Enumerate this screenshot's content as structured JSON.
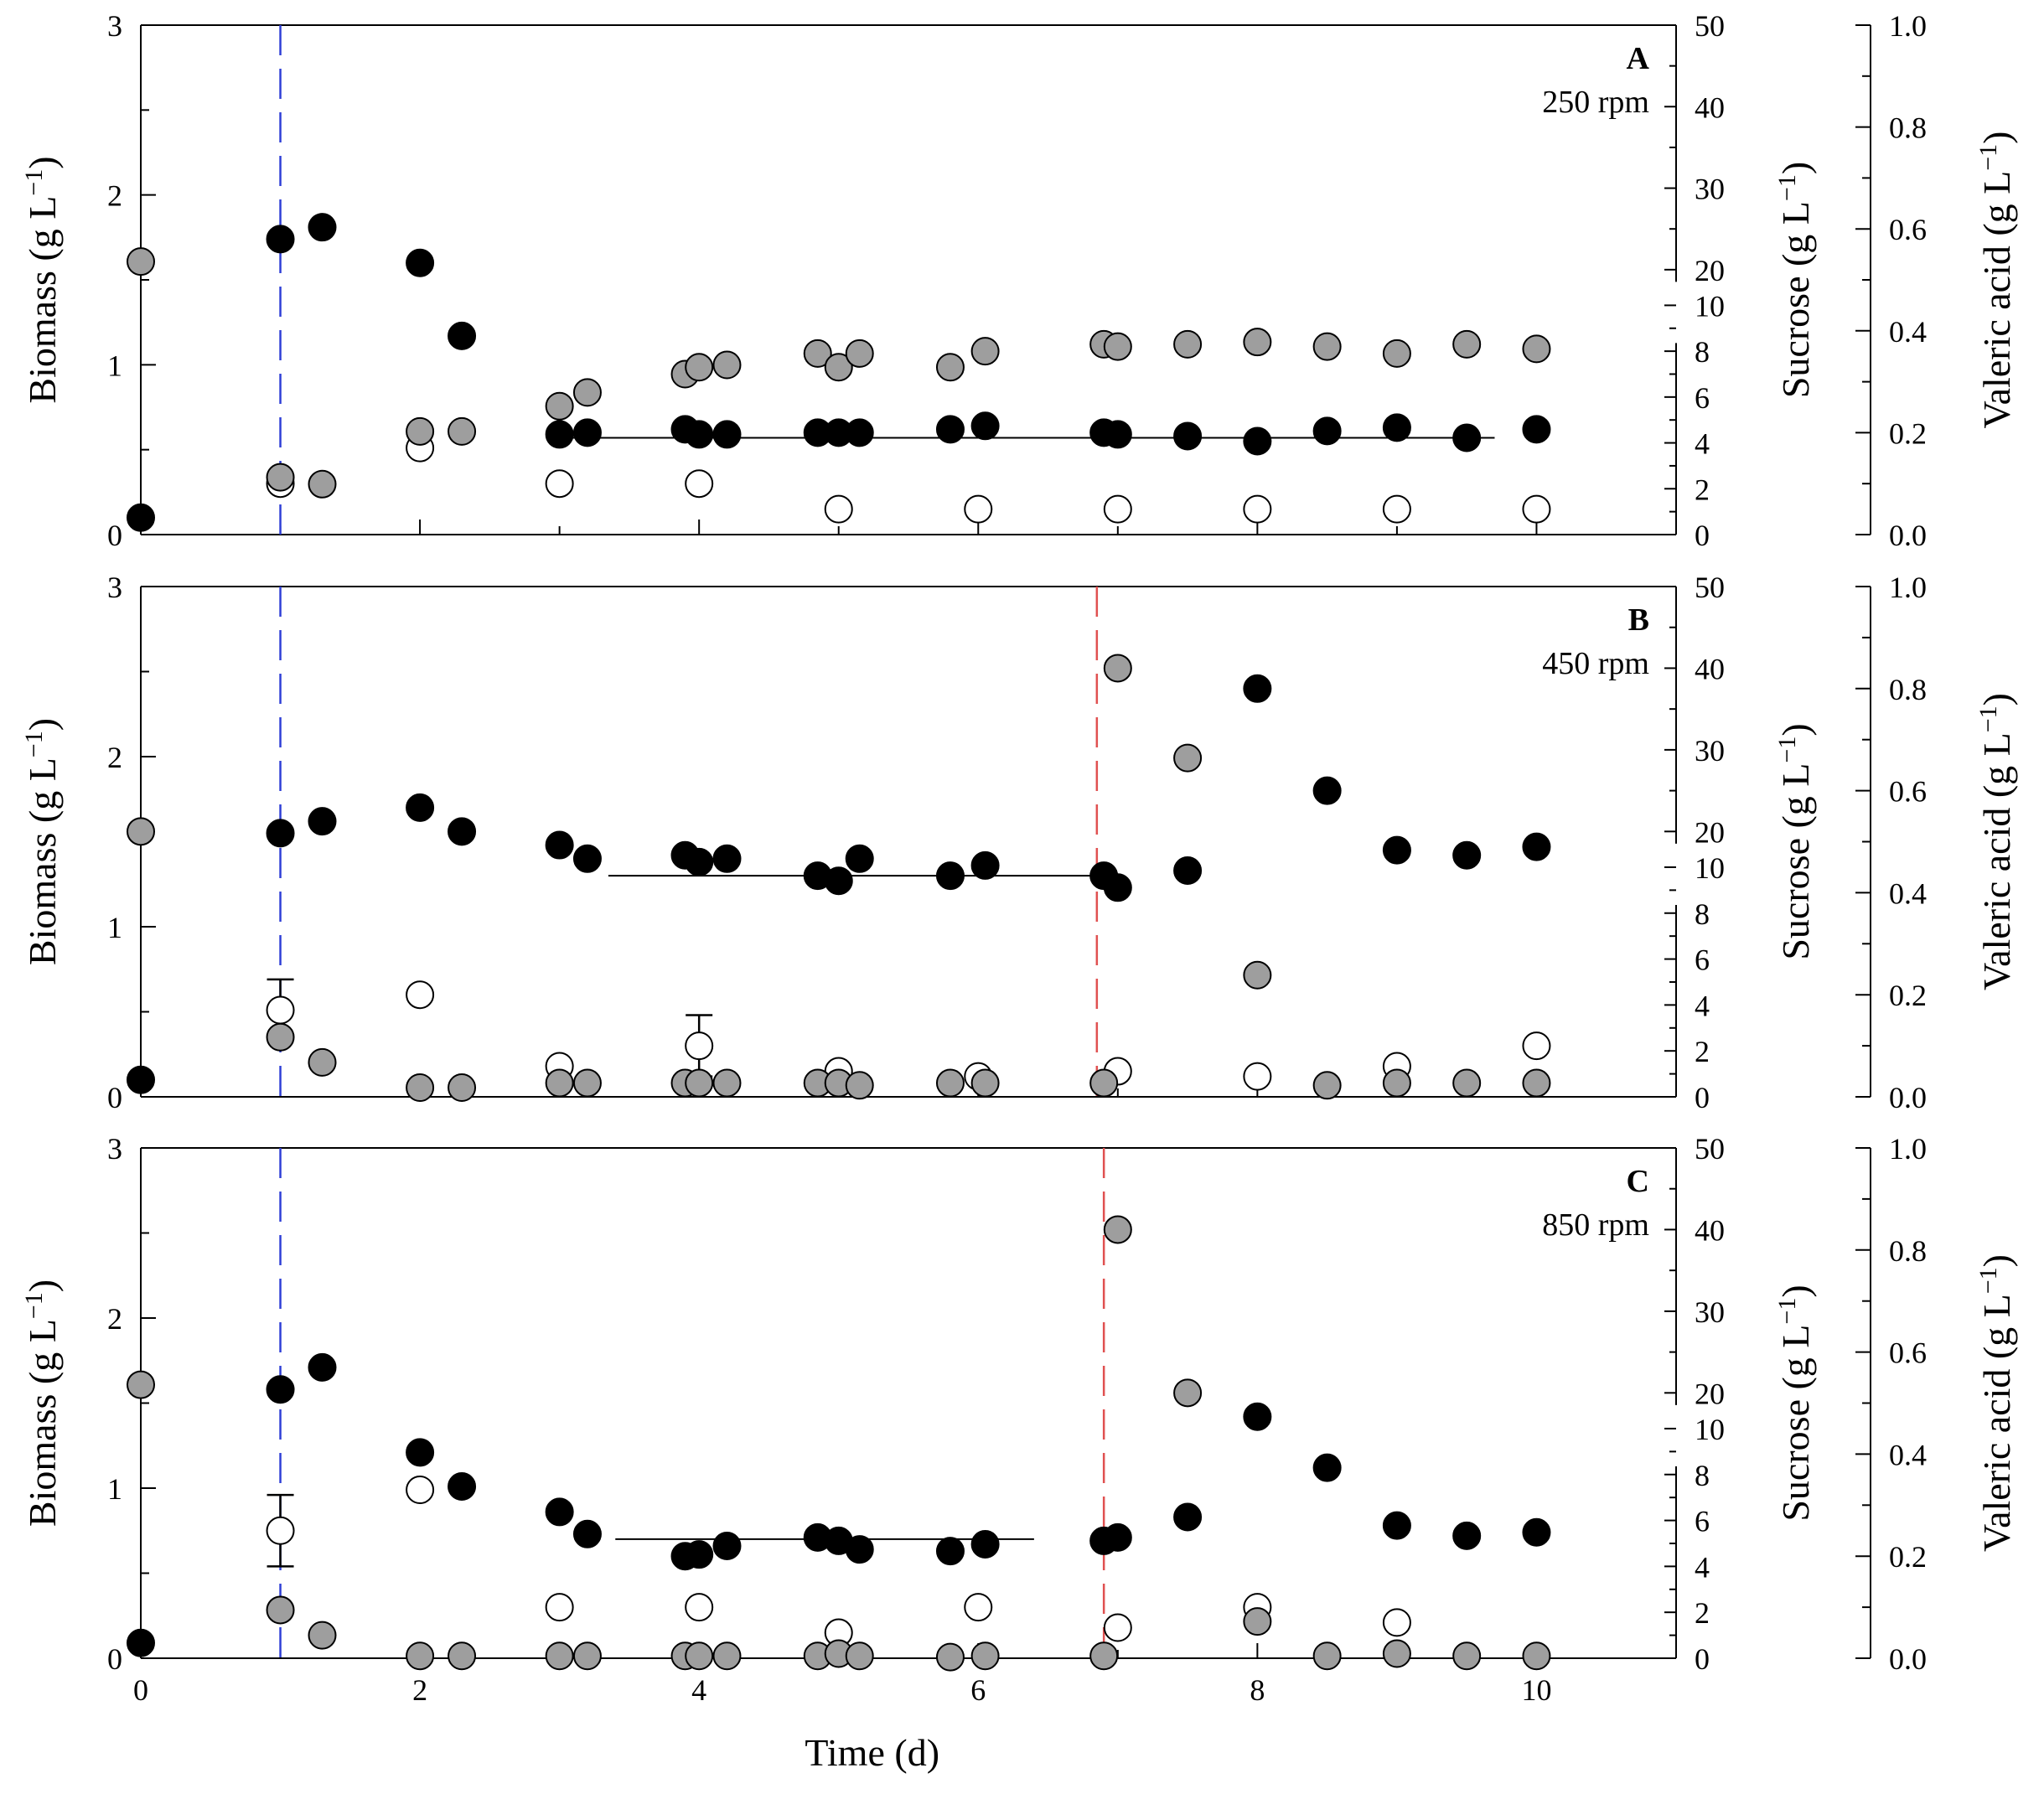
{
  "chart_data": {
    "type": "scatter",
    "xlabel": "Time (d)",
    "xlim": [
      0,
      11
    ],
    "x_ticks": [
      "0",
      "2",
      "4",
      "6",
      "8",
      "10"
    ],
    "axes_titles": {
      "biomass": "Biomass (g L",
      "sucrose": "Sucrose (g L",
      "valeric": "Valeric acid (g L",
      "unit_exp": "−1",
      "unit_close": ")"
    },
    "biomass_ticks": [
      "0",
      "1",
      "2",
      "3"
    ],
    "sucrose_low_ticks": [
      "0",
      "2",
      "4",
      "6",
      "8",
      "10"
    ],
    "sucrose_high_ticks": [
      "20",
      "30",
      "40",
      "50"
    ],
    "valeric_ticks": [
      "0.0",
      "0.2",
      "0.4",
      "0.6",
      "0.8",
      "1.0"
    ],
    "series_legend": {
      "biomass": "black filled circles",
      "sucrose": "grey filled circles",
      "valeric": "open circles"
    },
    "colors": {
      "biomass": "#000000",
      "sucrose": "#9e9e9e",
      "valeric": "#ffffff",
      "feed_line": "#2f3fd6",
      "pulse_line": "#e05050"
    },
    "panels": [
      {
        "label": "A",
        "condition": "250 rpm",
        "feed_start": 1.0,
        "pulse": null,
        "steady_state": {
          "x0": 3.0,
          "x1": 9.7,
          "biomass": 0.57
        },
        "biomass": [
          [
            0,
            0.1
          ],
          [
            1,
            1.74
          ],
          [
            1.3,
            1.81
          ],
          [
            2,
            1.6
          ],
          [
            2.3,
            1.17
          ],
          [
            3,
            0.59
          ],
          [
            3.2,
            0.6
          ],
          [
            3.9,
            0.62
          ],
          [
            4,
            0.59
          ],
          [
            4.2,
            0.59
          ],
          [
            4.85,
            0.6
          ],
          [
            5,
            0.6
          ],
          [
            5.15,
            0.6
          ],
          [
            5.8,
            0.62
          ],
          [
            6.05,
            0.64
          ],
          [
            6.9,
            0.6
          ],
          [
            7,
            0.59
          ],
          [
            7.5,
            0.58
          ],
          [
            8,
            0.55
          ],
          [
            8.5,
            0.61
          ],
          [
            9,
            0.63
          ],
          [
            9.5,
            0.57
          ],
          [
            10,
            0.62
          ]
        ],
        "sucrose": [
          [
            0,
            21.0
          ],
          [
            1,
            2.5
          ],
          [
            1.3,
            2.2
          ],
          [
            2,
            4.5
          ],
          [
            2.3,
            4.5
          ],
          [
            3,
            5.6
          ],
          [
            3.2,
            6.2
          ],
          [
            3.9,
            7.0
          ],
          [
            4,
            7.3
          ],
          [
            4.2,
            7.4
          ],
          [
            4.85,
            7.9
          ],
          [
            5,
            7.3
          ],
          [
            5.15,
            7.9
          ],
          [
            5.8,
            7.3
          ],
          [
            6.05,
            8.0
          ],
          [
            6.9,
            8.3
          ],
          [
            7,
            8.2
          ],
          [
            7.5,
            8.3
          ],
          [
            8,
            8.4
          ],
          [
            8.5,
            8.2
          ],
          [
            9,
            7.9
          ],
          [
            9.5,
            8.3
          ],
          [
            10,
            8.1
          ]
        ],
        "valeric": [
          [
            1,
            0.1
          ],
          [
            2,
            0.17
          ],
          [
            3,
            0.1
          ],
          [
            4,
            0.1
          ],
          [
            5,
            0.05
          ],
          [
            6,
            0.05
          ],
          [
            7,
            0.05
          ],
          [
            8,
            0.05
          ],
          [
            9,
            0.05
          ],
          [
            10,
            0.05
          ]
        ],
        "errorbars": []
      },
      {
        "label": "B",
        "condition": "450 rpm",
        "feed_start": 1.0,
        "pulse": 6.85,
        "steady_state": {
          "x0": 3.35,
          "x1": 6.9,
          "biomass": 1.3
        },
        "biomass": [
          [
            0,
            0.1
          ],
          [
            1,
            1.55
          ],
          [
            1.3,
            1.62
          ],
          [
            2,
            1.7
          ],
          [
            2.3,
            1.56
          ],
          [
            3,
            1.48
          ],
          [
            3.2,
            1.4
          ],
          [
            3.9,
            1.42
          ],
          [
            4,
            1.38
          ],
          [
            4.2,
            1.4
          ],
          [
            4.85,
            1.3
          ],
          [
            5,
            1.27
          ],
          [
            5.15,
            1.4
          ],
          [
            5.8,
            1.3
          ],
          [
            6.05,
            1.36
          ],
          [
            6.9,
            1.3
          ],
          [
            7,
            1.23
          ],
          [
            7.5,
            1.33
          ],
          [
            8,
            2.4
          ],
          [
            8.5,
            1.8
          ],
          [
            9,
            1.45
          ],
          [
            9.5,
            1.42
          ],
          [
            10,
            1.47
          ]
        ],
        "sucrose": [
          [
            0,
            20.0
          ],
          [
            1,
            2.6
          ],
          [
            1.3,
            1.5
          ],
          [
            2,
            0.4
          ],
          [
            2.3,
            0.4
          ],
          [
            3,
            0.6
          ],
          [
            3.2,
            0.6
          ],
          [
            3.9,
            0.6
          ],
          [
            4,
            0.6
          ],
          [
            4.2,
            0.6
          ],
          [
            4.85,
            0.6
          ],
          [
            5,
            0.6
          ],
          [
            5.15,
            0.5
          ],
          [
            5.8,
            0.6
          ],
          [
            6.05,
            0.6
          ],
          [
            6.9,
            0.6
          ],
          [
            7,
            40.0
          ],
          [
            7.5,
            29.0
          ],
          [
            8,
            5.3
          ],
          [
            8.5,
            0.5
          ],
          [
            9,
            0.6
          ],
          [
            9.5,
            0.6
          ],
          [
            10,
            0.6
          ]
        ],
        "valeric": [
          [
            1,
            0.17
          ],
          [
            2,
            0.2
          ],
          [
            3,
            0.06
          ],
          [
            4,
            0.1
          ],
          [
            5,
            0.05
          ],
          [
            6,
            0.04
          ],
          [
            7,
            0.05
          ],
          [
            8,
            0.04
          ],
          [
            9,
            0.06
          ],
          [
            10,
            0.1
          ]
        ],
        "errorbars": [
          {
            "series": "valeric",
            "x": 1,
            "lo": 0.12,
            "hi": 0.23
          },
          {
            "series": "valeric",
            "x": 4,
            "lo": 0.04,
            "hi": 0.16
          }
        ]
      },
      {
        "label": "C",
        "condition": "850 rpm",
        "feed_start": 1.0,
        "pulse": 6.9,
        "steady_state": {
          "x0": 3.4,
          "x1": 6.4,
          "biomass": 0.7
        },
        "biomass": [
          [
            0,
            0.09
          ],
          [
            1,
            1.58
          ],
          [
            1.3,
            1.71
          ],
          [
            2,
            1.21
          ],
          [
            2.3,
            1.01
          ],
          [
            3,
            0.86
          ],
          [
            3.2,
            0.73
          ],
          [
            3.9,
            0.6
          ],
          [
            4,
            0.61
          ],
          [
            4.2,
            0.66
          ],
          [
            4.85,
            0.71
          ],
          [
            5,
            0.69
          ],
          [
            5.15,
            0.64
          ],
          [
            5.8,
            0.63
          ],
          [
            6.05,
            0.67
          ],
          [
            6.9,
            0.69
          ],
          [
            7,
            0.71
          ],
          [
            7.5,
            0.83
          ],
          [
            8,
            1.42
          ],
          [
            8.5,
            1.12
          ],
          [
            9,
            0.78
          ],
          [
            9.5,
            0.72
          ],
          [
            10,
            0.74
          ]
        ],
        "sucrose": [
          [
            0,
            21.0
          ],
          [
            1,
            2.1
          ],
          [
            1.3,
            1.0
          ],
          [
            2,
            0.1
          ],
          [
            2.3,
            0.1
          ],
          [
            3,
            0.1
          ],
          [
            3.2,
            0.1
          ],
          [
            3.9,
            0.1
          ],
          [
            4,
            0.1
          ],
          [
            4.2,
            0.1
          ],
          [
            4.85,
            0.1
          ],
          [
            5,
            0.2
          ],
          [
            5.15,
            0.1
          ],
          [
            5.8,
            0.05
          ],
          [
            6.05,
            0.1
          ],
          [
            6.9,
            0.1
          ],
          [
            7,
            40.0
          ],
          [
            7.5,
            20.0
          ],
          [
            8,
            1.6
          ],
          [
            8.5,
            0.1
          ],
          [
            9,
            0.2
          ],
          [
            9.5,
            0.1
          ],
          [
            10,
            0.1
          ]
        ],
        "valeric": [
          [
            1,
            0.25
          ],
          [
            2,
            0.33
          ],
          [
            3,
            0.1
          ],
          [
            4,
            0.1
          ],
          [
            5,
            0.05
          ],
          [
            6,
            0.1
          ],
          [
            7,
            0.06
          ],
          [
            8,
            0.1
          ],
          [
            9,
            0.07
          ]
        ],
        "errorbars": [
          {
            "series": "valeric",
            "x": 1,
            "lo": 0.18,
            "hi": 0.32
          }
        ]
      }
    ]
  }
}
